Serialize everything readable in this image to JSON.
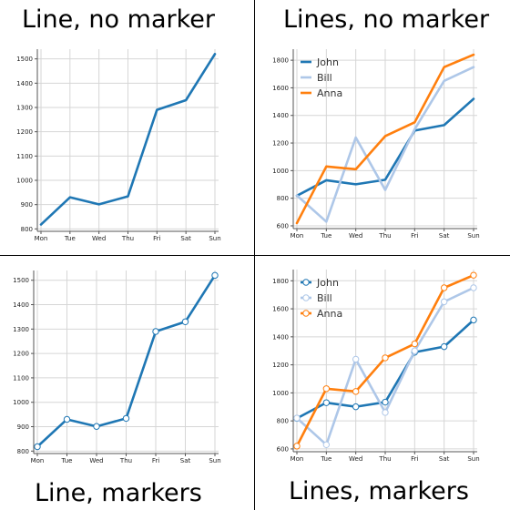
{
  "panels": [
    {
      "title": "Line, no marker"
    },
    {
      "title": "Lines, no marker"
    },
    {
      "title": "Line, markers"
    },
    {
      "title": "Lines, markers"
    }
  ],
  "chart_data": [
    {
      "type": "line",
      "title": "Line, no marker",
      "categories": [
        "Mon",
        "Tue",
        "Wed",
        "Thu",
        "Fri",
        "Sat",
        "Sun"
      ],
      "series": [
        {
          "values": [
            818,
            930,
            901,
            934,
            1290,
            1330,
            1520
          ],
          "color": "#1f77b4"
        }
      ],
      "ylim": [
        790,
        1540
      ],
      "yticks": [
        800,
        900,
        1000,
        1100,
        1200,
        1300,
        1400,
        1500
      ],
      "markers": false,
      "legend": false,
      "grid": true
    },
    {
      "type": "line",
      "title": "Lines, no marker",
      "categories": [
        "Mon",
        "Tue",
        "Wed",
        "Thu",
        "Fri",
        "Sat",
        "Sun"
      ],
      "series": [
        {
          "name": "John",
          "values": [
            818,
            930,
            901,
            934,
            1290,
            1330,
            1520
          ],
          "color": "#1f77b4"
        },
        {
          "name": "Bill",
          "values": [
            820,
            630,
            1240,
            860,
            1300,
            1650,
            1750
          ],
          "color": "#aec7e8"
        },
        {
          "name": "Anna",
          "values": [
            620,
            1030,
            1010,
            1250,
            1350,
            1750,
            1840
          ],
          "color": "#ff7f0e"
        }
      ],
      "ylim": [
        580,
        1880
      ],
      "yticks": [
        600,
        800,
        1000,
        1200,
        1400,
        1600,
        1800
      ],
      "markers": false,
      "legend": true,
      "legend_position": "top-left",
      "grid": true
    },
    {
      "type": "line",
      "title": "Line, markers",
      "categories": [
        "Mon",
        "Tue",
        "Wed",
        "Thu",
        "Fri",
        "Sat",
        "Sun"
      ],
      "series": [
        {
          "values": [
            818,
            930,
            901,
            934,
            1290,
            1330,
            1520
          ],
          "color": "#1f77b4"
        }
      ],
      "ylim": [
        790,
        1540
      ],
      "yticks": [
        800,
        900,
        1000,
        1100,
        1200,
        1300,
        1400,
        1500
      ],
      "markers": true,
      "legend": false,
      "grid": true
    },
    {
      "type": "line",
      "title": "Lines, markers",
      "categories": [
        "Mon",
        "Tue",
        "Wed",
        "Thu",
        "Fri",
        "Sat",
        "Sun"
      ],
      "series": [
        {
          "name": "John",
          "values": [
            818,
            930,
            901,
            934,
            1290,
            1330,
            1520
          ],
          "color": "#1f77b4"
        },
        {
          "name": "Bill",
          "values": [
            820,
            630,
            1240,
            860,
            1300,
            1650,
            1750
          ],
          "color": "#aec7e8"
        },
        {
          "name": "Anna",
          "values": [
            620,
            1030,
            1010,
            1250,
            1350,
            1750,
            1840
          ],
          "color": "#ff7f0e"
        }
      ],
      "ylim": [
        580,
        1880
      ],
      "yticks": [
        600,
        800,
        1000,
        1200,
        1400,
        1600,
        1800
      ],
      "markers": true,
      "legend": true,
      "legend_position": "top-left",
      "grid": true
    }
  ]
}
